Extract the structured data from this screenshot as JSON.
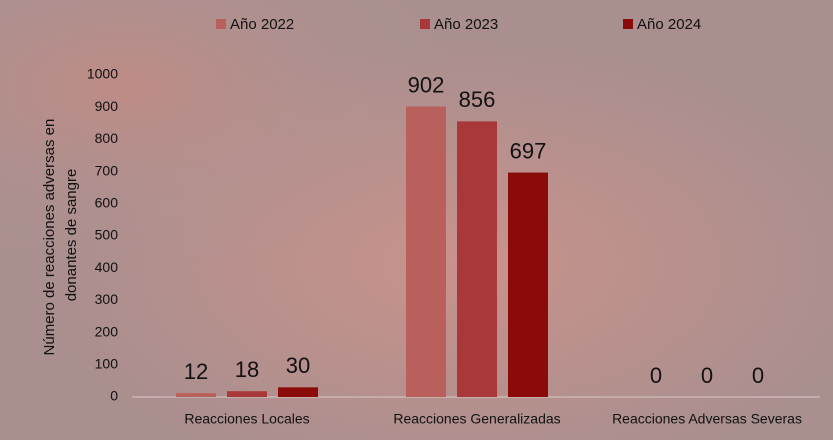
{
  "chart_data": {
    "type": "bar",
    "ylabel": [
      "Número de reacciones adversas en",
      "donantes de sangre"
    ],
    "categories": [
      "Reacciones Locales",
      "Reacciones Generalizadas",
      "Reacciones Adversas Severas"
    ],
    "series": [
      {
        "name": "Año 2022",
        "color": "#b9605c",
        "values": [
          12,
          902,
          0
        ]
      },
      {
        "name": "Año 2023",
        "color": "#a8383a",
        "values": [
          18,
          856,
          0
        ]
      },
      {
        "name": "Año 2024",
        "color": "#8b0a0a",
        "values": [
          30,
          697,
          0
        ]
      }
    ],
    "ylim": [
      0,
      1000
    ],
    "yticks": [
      0,
      100,
      200,
      300,
      400,
      500,
      600,
      700,
      800,
      900,
      1000
    ],
    "grid": false,
    "legend": "top"
  }
}
